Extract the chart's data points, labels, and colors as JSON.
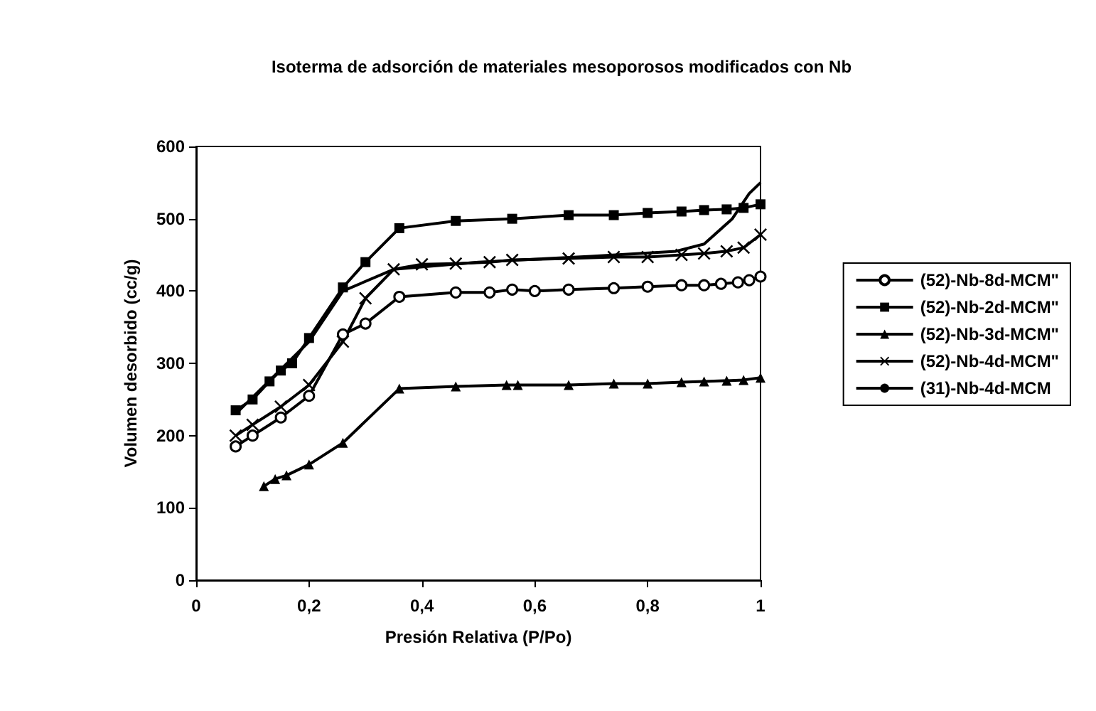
{
  "chart_data": {
    "type": "line",
    "title": "Isoterma de adsorción de materiales mesoporosos modificados con Nb",
    "xlabel": "Presión Relativa (P/Po)",
    "ylabel": "Volumen desorbido (cc/g)",
    "xlim": [
      0,
      1
    ],
    "xticks": [
      {
        "value": 0,
        "label": "0"
      },
      {
        "value": 0.2,
        "label": "0,2"
      },
      {
        "value": 0.4,
        "label": "0,4"
      },
      {
        "value": 0.6,
        "label": "0,6"
      },
      {
        "value": 0.8,
        "label": "0,8"
      },
      {
        "value": 1,
        "label": "1"
      }
    ],
    "ylim": [
      0,
      600
    ],
    "yticks": [
      0,
      100,
      200,
      300,
      400,
      500,
      600
    ],
    "grid": false,
    "legend": "right",
    "line_style": "solid",
    "series": [
      {
        "name": "(52)-Nb-8d-MCM\"",
        "color": "#000000",
        "marker": "circle",
        "x": [
          0.07,
          0.1,
          0.15,
          0.2,
          0.26,
          0.3,
          0.36,
          0.46,
          0.52,
          0.56,
          0.6,
          0.66,
          0.74,
          0.8,
          0.86,
          0.9,
          0.93,
          0.96,
          0.98,
          1.0
        ],
        "values": [
          185,
          200,
          225,
          255,
          340,
          355,
          392,
          398,
          398,
          402,
          400,
          402,
          404,
          406,
          408,
          408,
          410,
          412,
          415,
          420
        ]
      },
      {
        "name": "(52)-Nb-2d-MCM\"",
        "color": "#000000",
        "marker": "square",
        "x": [
          0.07,
          0.1,
          0.13,
          0.15,
          0.17,
          0.2,
          0.26,
          0.3,
          0.36,
          0.46,
          0.56,
          0.66,
          0.74,
          0.8,
          0.86,
          0.9,
          0.94,
          0.97,
          1.0
        ],
        "values": [
          235,
          250,
          275,
          290,
          300,
          335,
          405,
          440,
          487,
          497,
          500,
          505,
          505,
          508,
          510,
          512,
          513,
          515,
          520
        ]
      },
      {
        "name": "(52)-Nb-3d-MCM\"",
        "color": "#000000",
        "marker": "triangle",
        "x": [
          0.12,
          0.14,
          0.16,
          0.2,
          0.26,
          0.36,
          0.46,
          0.55,
          0.57,
          0.66,
          0.74,
          0.8,
          0.86,
          0.9,
          0.94,
          0.97,
          1.0
        ],
        "values": [
          130,
          140,
          145,
          160,
          190,
          265,
          268,
          270,
          270,
          270,
          272,
          272,
          274,
          275,
          276,
          277,
          280
        ]
      },
      {
        "name": "(52)-Nb-4d-MCM\"",
        "color": "#000000",
        "marker": "cross",
        "x": [
          0.07,
          0.1,
          0.15,
          0.2,
          0.26,
          0.3,
          0.35,
          0.4,
          0.46,
          0.52,
          0.56,
          0.66,
          0.74,
          0.8,
          0.86,
          0.9,
          0.94,
          0.97,
          1.0
        ],
        "values": [
          200,
          215,
          240,
          270,
          330,
          390,
          430,
          437,
          438,
          440,
          443,
          445,
          447,
          447,
          450,
          452,
          455,
          460,
          478
        ]
      },
      {
        "name": "(31)-Nb-4d-MCM",
        "color": "#000000",
        "marker": "none",
        "x": [
          0.07,
          0.2,
          0.26,
          0.35,
          0.5,
          0.7,
          0.85,
          0.9,
          0.95,
          0.98,
          1.0
        ],
        "values": [
          230,
          330,
          400,
          430,
          440,
          448,
          455,
          465,
          500,
          535,
          550
        ]
      }
    ]
  }
}
